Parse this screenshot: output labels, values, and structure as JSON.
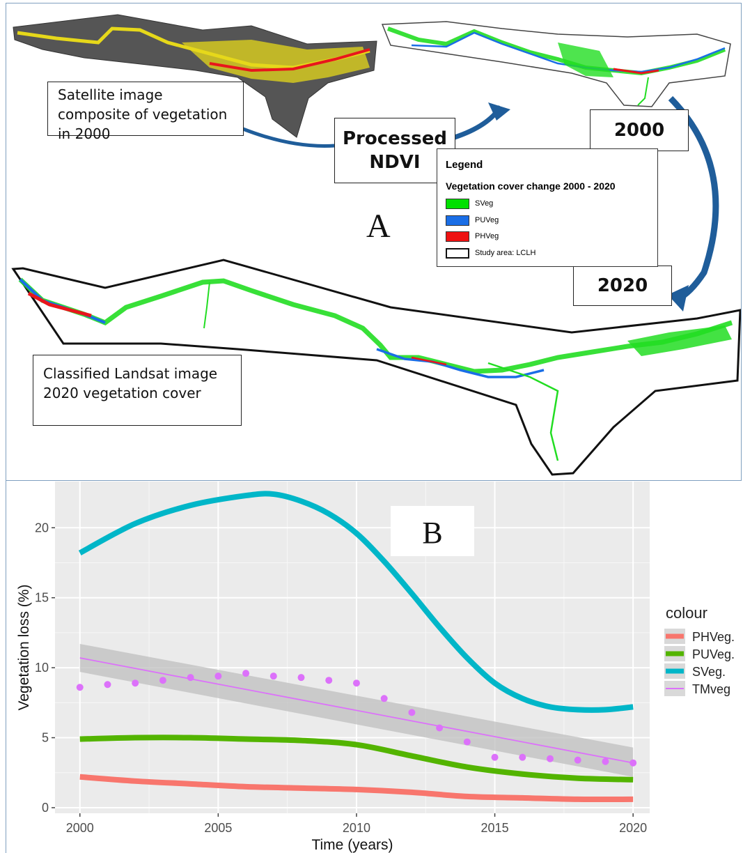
{
  "panel_a": {
    "letter": "A",
    "callouts": {
      "satellite": "Satellite image composite of vegetation in 2000",
      "processed": "Processed NDVI",
      "year_2000": "2000",
      "year_2020": "2020",
      "classified": "Classified Landsat image 2020 vegetation cover"
    },
    "legend": {
      "title": "Legend",
      "subtitle": "Vegetation cover change 2000 - 2020",
      "items": [
        {
          "label": "SVeg",
          "color": "#00e000"
        },
        {
          "label": "PUVeg",
          "color": "#1a6ee6"
        },
        {
          "label": "PHVeg",
          "color": "#ee1111"
        },
        {
          "label": "Study area: LCLH",
          "color": "#ffffff"
        }
      ]
    },
    "colors": {
      "sveg": "#22dd22",
      "puveg": "#1a6ee6",
      "phveg": "#e8161c",
      "yellow": "#e6d81a",
      "gray": "#555555"
    }
  },
  "panel_b": {
    "letter": "B"
  },
  "chart_data": {
    "type": "line",
    "title": "",
    "xlabel": "Time (years)",
    "ylabel": "Vegetation loss (%)",
    "xlim": [
      1999.1,
      2020.6
    ],
    "ylim": [
      -0.4,
      23.3
    ],
    "xticks": [
      2000,
      2005,
      2010,
      2015,
      2020
    ],
    "yticks": [
      0,
      5,
      10,
      15,
      20
    ],
    "grid": true,
    "legend_title": "colour",
    "legend_position": "right",
    "series": [
      {
        "name": "PHVeg.",
        "color": "#f8766d",
        "kind": "smooth",
        "x": [
          2000,
          2002,
          2004,
          2006,
          2008,
          2010,
          2012,
          2014,
          2016,
          2018,
          2020
        ],
        "y": [
          2.2,
          1.9,
          1.7,
          1.5,
          1.4,
          1.3,
          1.1,
          0.8,
          0.7,
          0.6,
          0.6
        ]
      },
      {
        "name": "PUVeg.",
        "color": "#53b400",
        "kind": "smooth",
        "x": [
          2000,
          2002,
          2004,
          2006,
          2008,
          2010,
          2012,
          2014,
          2016,
          2018,
          2020
        ],
        "y": [
          4.9,
          5.0,
          5.0,
          4.9,
          4.8,
          4.5,
          3.7,
          2.9,
          2.4,
          2.1,
          2.0
        ]
      },
      {
        "name": "SVeg.",
        "color": "#00b6c8",
        "kind": "smooth",
        "x": [
          2000,
          2002,
          2004,
          2006,
          2007,
          2008,
          2009,
          2010,
          2011,
          2012,
          2013,
          2014,
          2015,
          2016,
          2017,
          2018,
          2019,
          2020
        ],
        "y": [
          18.2,
          20.3,
          21.6,
          22.3,
          22.4,
          21.9,
          21.0,
          19.6,
          17.6,
          15.3,
          12.9,
          10.7,
          8.9,
          7.8,
          7.2,
          7.0,
          7.0,
          7.2
        ]
      },
      {
        "name": "TMveg",
        "color": "#dc71fa",
        "kind": "points_trend",
        "x": [
          2000,
          2001,
          2002,
          2003,
          2004,
          2005,
          2006,
          2007,
          2008,
          2009,
          2010,
          2011,
          2012,
          2013,
          2014,
          2015,
          2016,
          2017,
          2018,
          2019,
          2020
        ],
        "y": [
          8.6,
          8.8,
          8.9,
          9.1,
          9.3,
          9.4,
          9.6,
          9.4,
          9.3,
          9.1,
          8.9,
          7.8,
          6.8,
          5.7,
          4.7,
          3.6,
          3.6,
          3.5,
          3.4,
          3.3,
          3.2
        ],
        "trend": {
          "x": [
            2000,
            2020
          ],
          "y": [
            10.7,
            3.2
          ],
          "band_lower": [
            9.7,
            2.2
          ],
          "band_upper": [
            11.7,
            4.3
          ]
        }
      }
    ]
  }
}
